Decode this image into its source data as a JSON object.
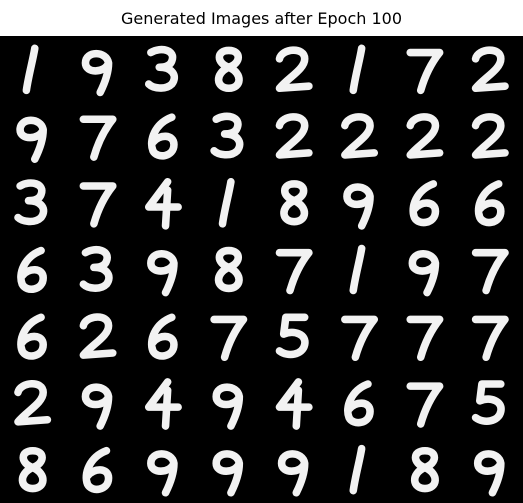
{
  "title": "Generated Images after Epoch 100",
  "colors": {
    "background": "#ffffff",
    "grid_background": "#000000",
    "digit_stroke": "#f2f2f2",
    "title_text": "#000000"
  },
  "grid": {
    "rows": 7,
    "cols": 8,
    "digits": [
      [
        "1",
        "9",
        "3",
        "8",
        "2",
        "1",
        "7",
        "2"
      ],
      [
        "9",
        "7",
        "6",
        "3",
        "2",
        "2",
        "2",
        "2"
      ],
      [
        "3",
        "7",
        "4",
        "1",
        "8",
        "9",
        "6",
        "6"
      ],
      [
        "6",
        "3",
        "9",
        "8",
        "7",
        "1",
        "9",
        "7"
      ],
      [
        "6",
        "2",
        "6",
        "7",
        "5",
        "7",
        "7",
        "7"
      ],
      [
        "2",
        "9",
        "4",
        "9",
        "4",
        "6",
        "7",
        "5"
      ],
      [
        "8",
        "6",
        "9",
        "9",
        "9",
        "1",
        "8",
        "9"
      ]
    ]
  }
}
